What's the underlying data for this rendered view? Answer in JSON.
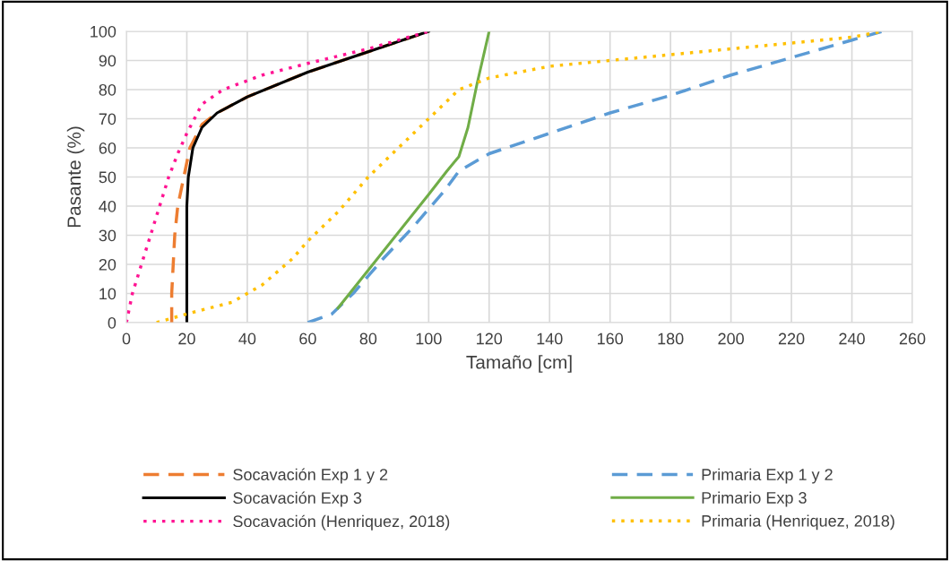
{
  "chart_data": {
    "type": "line",
    "xlabel": "Tamaño [cm]",
    "ylabel": "Pasante (%)",
    "xlim": [
      0,
      260
    ],
    "xticks": [
      0,
      20,
      40,
      60,
      80,
      100,
      120,
      140,
      160,
      180,
      200,
      220,
      240,
      260
    ],
    "ylim": [
      0,
      100
    ],
    "yticks": [
      0,
      10,
      20,
      30,
      40,
      50,
      60,
      70,
      80,
      90,
      100
    ],
    "grid": true,
    "legend": "bottom",
    "marker": "none",
    "series": [
      {
        "name": "Socavación Exp 1 y 2",
        "color": "#ed7d31",
        "line_style": "dashed",
        "x": [
          15,
          15,
          15.5,
          16,
          17,
          19,
          21,
          25,
          30,
          40,
          60,
          80,
          100
        ],
        "values": [
          0,
          10,
          20,
          30,
          40,
          50,
          60,
          68,
          72,
          77.5,
          86,
          93,
          100
        ]
      },
      {
        "name": "Socavación Exp 3",
        "color": "#000000",
        "line_style": "solid",
        "x": [
          20,
          20,
          20,
          20.5,
          22,
          25,
          30,
          40,
          60,
          80,
          100
        ],
        "values": [
          0,
          20,
          40,
          50,
          60,
          67,
          72,
          77.5,
          86,
          93,
          100
        ]
      },
      {
        "name": "Socavación (Henriquez, 2018)",
        "color": "#ff1493",
        "line_style": "dotted",
        "x": [
          0,
          2,
          5,
          8,
          11,
          14,
          17,
          20,
          25,
          32,
          45,
          60,
          80,
          100
        ],
        "values": [
          0,
          10,
          20,
          30,
          40,
          50,
          58,
          65,
          75,
          80,
          85,
          89,
          94,
          100
        ]
      },
      {
        "name": "Primaria Exp 1 y 2",
        "color": "#5b9bd5",
        "line_style": "dashed",
        "x": [
          60,
          68,
          75,
          85,
          95,
          105,
          110,
          120,
          140,
          160,
          180,
          200,
          220,
          240,
          250
        ],
        "values": [
          0,
          3,
          10,
          22,
          33,
          45,
          52,
          58,
          65,
          72,
          78,
          85,
          91,
          97,
          100
        ]
      },
      {
        "name": "Primario Exp 3",
        "color": "#70ad47",
        "line_style": "solid",
        "x": [
          70,
          80,
          90,
          100,
          106,
          110,
          113,
          116,
          120
        ],
        "values": [
          5,
          18,
          31,
          44,
          52,
          57,
          67,
          82,
          100
        ]
      },
      {
        "name": "Primaria (Henriquez, 2018)",
        "color": "#ffc000",
        "line_style": "dotted",
        "x": [
          10,
          20,
          35,
          45,
          55,
          60,
          70,
          80,
          90,
          100,
          110,
          120,
          140,
          160,
          200,
          240,
          250
        ],
        "values": [
          0,
          3,
          7,
          13,
          22,
          28,
          38,
          50,
          60,
          70,
          80,
          84,
          88,
          90,
          94,
          98,
          100
        ]
      }
    ]
  }
}
